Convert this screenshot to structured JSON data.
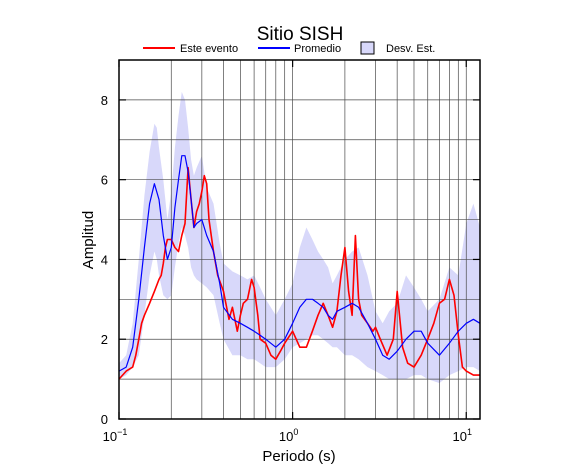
{
  "chart_data": {
    "type": "line",
    "title": "Sitio SISH",
    "xlabel": "Periodo (s)",
    "ylabel": "Amplitud",
    "xscale": "log",
    "xlim": [
      0.1,
      12
    ],
    "ylim": [
      0,
      9
    ],
    "xticks": [
      0.1,
      1,
      10
    ],
    "xtick_labels": [
      {
        "base": "10",
        "exp": "−1"
      },
      {
        "base": "10",
        "exp": "0"
      },
      {
        "base": "10",
        "exp": "1"
      }
    ],
    "yticks": [
      0,
      2,
      4,
      6,
      8
    ],
    "grid": true,
    "legend_position": "top",
    "legend": [
      {
        "label": "Este evento",
        "kind": "line",
        "color": "#ff0000"
      },
      {
        "label": "Promedio",
        "kind": "line",
        "color": "#0000ff"
      },
      {
        "label": "Desv. Est.",
        "kind": "patch",
        "color": "#d8d8fa"
      }
    ],
    "series": [
      {
        "name": "Este evento",
        "color": "#ff0000",
        "x": [
          0.1,
          0.11,
          0.12,
          0.125,
          0.13,
          0.135,
          0.14,
          0.15,
          0.16,
          0.17,
          0.175,
          0.18,
          0.185,
          0.19,
          0.2,
          0.21,
          0.22,
          0.23,
          0.24,
          0.25,
          0.26,
          0.27,
          0.28,
          0.29,
          0.3,
          0.31,
          0.32,
          0.33,
          0.35,
          0.37,
          0.4,
          0.43,
          0.45,
          0.48,
          0.5,
          0.52,
          0.55,
          0.58,
          0.6,
          0.63,
          0.65,
          0.7,
          0.75,
          0.8,
          0.85,
          0.9,
          1.0,
          1.1,
          1.2,
          1.3,
          1.4,
          1.5,
          1.6,
          1.7,
          1.8,
          1.9,
          2.0,
          2.1,
          2.2,
          2.3,
          2.4,
          2.5,
          2.7,
          2.9,
          3.0,
          3.2,
          3.5,
          3.8,
          4.0,
          4.3,
          4.6,
          5.0,
          5.5,
          6.0,
          6.5,
          7.0,
          7.5,
          8.0,
          8.5,
          9.0,
          9.5,
          10.0,
          11.0,
          12.0
        ],
        "y": [
          1.0,
          1.2,
          1.3,
          1.6,
          2.0,
          2.4,
          2.6,
          2.9,
          3.2,
          3.5,
          3.6,
          3.9,
          4.3,
          4.5,
          4.5,
          4.3,
          4.2,
          4.6,
          4.9,
          6.3,
          5.5,
          4.8,
          5.2,
          5.4,
          5.7,
          6.1,
          5.9,
          5.0,
          4.2,
          3.6,
          3.2,
          2.5,
          2.8,
          2.2,
          2.6,
          2.9,
          3.0,
          3.5,
          3.3,
          2.6,
          2.0,
          1.9,
          1.6,
          1.5,
          1.7,
          1.9,
          2.2,
          1.8,
          1.8,
          2.2,
          2.6,
          2.9,
          2.6,
          2.3,
          2.7,
          3.6,
          4.3,
          3.2,
          2.6,
          4.6,
          3.0,
          2.6,
          2.4,
          2.2,
          2.3,
          2.0,
          1.6,
          2.0,
          3.2,
          1.8,
          1.4,
          1.3,
          1.6,
          2.0,
          2.4,
          2.9,
          3.0,
          3.5,
          3.1,
          2.1,
          1.3,
          1.2,
          1.1,
          1.1
        ]
      },
      {
        "name": "Promedio",
        "color": "#0000ff",
        "x": [
          0.1,
          0.11,
          0.12,
          0.13,
          0.14,
          0.15,
          0.16,
          0.17,
          0.18,
          0.19,
          0.2,
          0.21,
          0.22,
          0.23,
          0.24,
          0.25,
          0.26,
          0.27,
          0.28,
          0.3,
          0.32,
          0.35,
          0.38,
          0.4,
          0.45,
          0.5,
          0.55,
          0.6,
          0.65,
          0.7,
          0.8,
          0.9,
          1.0,
          1.1,
          1.2,
          1.3,
          1.4,
          1.5,
          1.6,
          1.7,
          1.8,
          2.0,
          2.2,
          2.4,
          2.7,
          3.0,
          3.3,
          3.6,
          4.0,
          4.5,
          5.0,
          5.5,
          6.0,
          7.0,
          8.0,
          9.0,
          10.0,
          11.0,
          12.0
        ],
        "y": [
          1.2,
          1.3,
          1.8,
          3.0,
          4.3,
          5.4,
          5.9,
          5.5,
          4.6,
          4.0,
          4.3,
          5.3,
          6.0,
          6.6,
          6.6,
          6.2,
          5.5,
          4.8,
          4.9,
          5.0,
          4.6,
          4.2,
          3.4,
          2.8,
          2.5,
          2.4,
          2.3,
          2.2,
          2.1,
          2.0,
          1.8,
          2.0,
          2.4,
          2.8,
          3.0,
          3.0,
          2.9,
          2.8,
          2.6,
          2.5,
          2.7,
          2.8,
          2.9,
          2.8,
          2.4,
          2.0,
          1.6,
          1.5,
          1.7,
          2.0,
          2.2,
          2.2,
          1.9,
          1.6,
          1.9,
          2.2,
          2.4,
          2.5,
          2.4
        ]
      }
    ],
    "band": {
      "name": "Desv. Est.",
      "color": "#d8d8fa",
      "x": [
        0.1,
        0.11,
        0.12,
        0.13,
        0.14,
        0.15,
        0.16,
        0.165,
        0.17,
        0.18,
        0.19,
        0.2,
        0.21,
        0.22,
        0.23,
        0.24,
        0.25,
        0.26,
        0.27,
        0.28,
        0.3,
        0.32,
        0.35,
        0.38,
        0.4,
        0.45,
        0.5,
        0.55,
        0.6,
        0.65,
        0.7,
        0.8,
        0.9,
        1.0,
        1.1,
        1.2,
        1.3,
        1.4,
        1.5,
        1.6,
        1.7,
        1.8,
        2.0,
        2.2,
        2.4,
        2.7,
        3.0,
        3.3,
        3.6,
        4.0,
        4.5,
        5.0,
        5.5,
        6.0,
        7.0,
        8.0,
        9.0,
        10.0,
        11.0,
        12.0
      ],
      "upper": [
        1.4,
        1.6,
        2.4,
        4.0,
        5.6,
        6.7,
        7.4,
        7.3,
        6.8,
        6.0,
        5.0,
        5.7,
        6.8,
        7.6,
        8.2,
        8.0,
        7.3,
        6.5,
        6.1,
        6.3,
        6.6,
        5.8,
        5.4,
        4.4,
        3.9,
        3.7,
        3.6,
        3.5,
        3.6,
        3.3,
        3.0,
        2.6,
        3.0,
        3.4,
        4.3,
        4.8,
        4.5,
        4.2,
        4.0,
        3.8,
        3.4,
        3.6,
        4.0,
        4.2,
        4.3,
        3.6,
        2.7,
        2.4,
        2.7,
        2.9,
        3.6,
        3.3,
        3.0,
        2.7,
        3.0,
        3.8,
        3.6,
        4.9,
        5.4,
        4.8
      ],
      "lower": [
        1.0,
        1.1,
        1.3,
        1.6,
        2.6,
        3.6,
        4.2,
        4.0,
        3.6,
        3.1,
        3.0,
        3.1,
        3.8,
        4.4,
        4.8,
        4.6,
        4.3,
        3.8,
        3.6,
        3.5,
        3.4,
        3.3,
        3.1,
        2.4,
        2.0,
        1.6,
        1.6,
        1.5,
        1.5,
        1.4,
        1.3,
        1.3,
        1.5,
        1.8,
        1.9,
        2.0,
        2.1,
        2.1,
        2.0,
        1.9,
        1.8,
        1.8,
        1.6,
        1.6,
        1.5,
        1.3,
        1.2,
        1.1,
        1.0,
        1.0,
        1.0,
        1.1,
        1.1,
        1.0,
        0.9,
        1.1,
        1.2,
        1.3,
        1.3,
        1.2
      ]
    }
  }
}
